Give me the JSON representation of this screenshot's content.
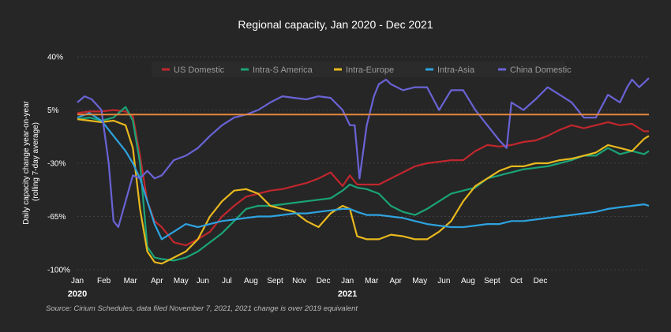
{
  "chart_data": {
    "type": "line",
    "title": "Regional capacity, Jan 2020 - Dec 2021",
    "ylabel": [
      "Daily capacity change year-on-year",
      "(rolling 7-day average)"
    ],
    "yticks": [
      "40%",
      "5%",
      "-30%",
      "-65%",
      "-100%"
    ],
    "ytick_values": [
      40,
      5,
      -30,
      -65,
      -100
    ],
    "ylim": [
      -100,
      40
    ],
    "xlim": [
      0,
      23.7
    ],
    "xticks": [
      "Jan",
      "Feb",
      "Mar",
      "Apr",
      "May",
      "Jun",
      "Jul",
      "Aug",
      "Sept",
      "Nov",
      "Dec",
      "Jan",
      "Mar",
      "Apr",
      "May",
      "Jun",
      "Aug",
      "Sept",
      "Oct",
      "Dec"
    ],
    "xtick_positions": [
      0,
      1.1,
      2.2,
      3.3,
      4.3,
      5.2,
      6.2,
      7.2,
      8.2,
      9.2,
      10.2,
      11.2,
      12.2,
      13.2,
      14.2,
      15.2,
      16.2,
      17.2,
      18.2,
      19.2
    ],
    "year_labels": [
      "2020",
      "2021"
    ],
    "year_positions": [
      0,
      11.2
    ],
    "reference_line": {
      "value": 2,
      "color": "#e8883a"
    },
    "grid": "horizontal dashed",
    "legend_position": "top",
    "series": [
      {
        "name": "US Domestic",
        "color": "#c0272d",
        "x": [
          0,
          0.5,
          1,
          1.5,
          2,
          2.3,
          2.6,
          2.9,
          3.2,
          3.5,
          4,
          4.5,
          5,
          5.5,
          6,
          6.5,
          7,
          7.5,
          8,
          8.5,
          9,
          9.5,
          10,
          10.5,
          11,
          11.3,
          11.6,
          12,
          12.5,
          13,
          13.5,
          14,
          14.5,
          15,
          15.5,
          16,
          16.5,
          17,
          17.5,
          18,
          18.5,
          19,
          19.5,
          20,
          20.5,
          21,
          21.5,
          22,
          22.5,
          23,
          23.5,
          23.7
        ],
        "values": [
          3,
          4,
          4,
          5,
          4,
          1,
          -25,
          -55,
          -68,
          -72,
          -82,
          -84,
          -80,
          -75,
          -65,
          -58,
          -52,
          -50,
          -48,
          -47,
          -45,
          -43,
          -40,
          -36,
          -45,
          -38,
          -44,
          -44,
          -44,
          -40,
          -36,
          -32,
          -30,
          -29,
          -28,
          -28,
          -22,
          -18,
          -19,
          -18,
          -16,
          -15,
          -12,
          -8,
          -5,
          -7,
          -5,
          -3,
          -5,
          -4,
          -9,
          -9
        ]
      },
      {
        "name": "Intra-S America",
        "color": "#1aa377",
        "x": [
          0,
          0.5,
          1,
          1.5,
          2,
          2.3,
          2.6,
          2.9,
          3.2,
          3.5,
          4,
          4.5,
          5,
          5.5,
          6,
          6.5,
          7,
          7.5,
          8,
          8.5,
          9,
          9.5,
          10,
          10.5,
          11,
          11.3,
          11.6,
          12,
          12.5,
          13,
          13.5,
          14,
          14.5,
          15,
          15.5,
          16,
          16.5,
          17,
          17.5,
          18,
          18.5,
          19,
          19.5,
          20,
          20.5,
          21,
          21.5,
          22,
          22.5,
          23,
          23.5,
          23.7
        ],
        "values": [
          -1,
          0,
          -2,
          0,
          7,
          -2,
          -30,
          -85,
          -92,
          -93,
          -94,
          -92,
          -88,
          -82,
          -76,
          -68,
          -60,
          -58,
          -58,
          -57,
          -56,
          -55,
          -54,
          -53,
          -48,
          -44,
          -46,
          -47,
          -50,
          -58,
          -62,
          -64,
          -60,
          -55,
          -50,
          -48,
          -46,
          -40,
          -38,
          -36,
          -34,
          -33,
          -32,
          -30,
          -28,
          -25,
          -25,
          -20,
          -24,
          -22,
          -24,
          -22
        ]
      },
      {
        "name": "Intra-Europe",
        "color": "#e8b81e",
        "x": [
          0,
          0.5,
          1,
          1.5,
          2,
          2.3,
          2.6,
          2.9,
          3.2,
          3.5,
          4,
          4.5,
          5,
          5.5,
          6,
          6.5,
          7,
          7.5,
          8,
          8.5,
          9,
          9.5,
          10,
          10.5,
          11,
          11.3,
          11.6,
          12,
          12.5,
          13,
          13.5,
          14,
          14.5,
          15,
          15.5,
          16,
          16.5,
          17,
          17.5,
          18,
          18.5,
          19,
          19.5,
          20,
          20.5,
          21,
          21.5,
          22,
          22.5,
          23,
          23.5,
          23.7
        ],
        "values": [
          -1,
          -2,
          -3,
          -2,
          -5,
          -20,
          -60,
          -88,
          -95,
          -96,
          -92,
          -88,
          -80,
          -65,
          -55,
          -48,
          -47,
          -50,
          -58,
          -60,
          -62,
          -68,
          -72,
          -63,
          -58,
          -60,
          -78,
          -80,
          -80,
          -77,
          -78,
          -80,
          -80,
          -75,
          -68,
          -55,
          -45,
          -40,
          -35,
          -32,
          -32,
          -30,
          -30,
          -28,
          -27,
          -25,
          -23,
          -18,
          -20,
          -22,
          -14,
          -12
        ]
      },
      {
        "name": "Intra-Asia",
        "color": "#2ea2df",
        "x": [
          0,
          0.5,
          1,
          1.5,
          2,
          2.3,
          2.6,
          2.9,
          3.2,
          3.5,
          4,
          4.5,
          5,
          5.5,
          6,
          6.5,
          7,
          7.5,
          8,
          8.5,
          9,
          9.5,
          10,
          10.5,
          11,
          11.3,
          11.6,
          12,
          12.5,
          13,
          13.5,
          14,
          14.5,
          15,
          15.5,
          16,
          16.5,
          17,
          17.5,
          18,
          18.5,
          19,
          19.5,
          20,
          20.5,
          21,
          21.5,
          22,
          22.5,
          23,
          23.5,
          23.7
        ],
        "values": [
          0,
          3,
          -2,
          -12,
          -22,
          -30,
          -40,
          -55,
          -70,
          -80,
          -75,
          -70,
          -72,
          -70,
          -68,
          -67,
          -66,
          -65,
          -65,
          -64,
          -63,
          -63,
          -62,
          -61,
          -60,
          -60,
          -62,
          -64,
          -64,
          -65,
          -66,
          -68,
          -70,
          -71,
          -72,
          -72,
          -71,
          -70,
          -70,
          -68,
          -68,
          -67,
          -66,
          -65,
          -64,
          -63,
          -62,
          -60,
          -59,
          -58,
          -57,
          -58
        ]
      },
      {
        "name": "China Domestic",
        "color": "#6a63d6",
        "x": [
          0,
          0.3,
          0.6,
          1,
          1.3,
          1.5,
          1.7,
          2,
          2.3,
          2.6,
          2.9,
          3.2,
          3.5,
          4,
          4.5,
          5,
          5.5,
          6,
          6.5,
          7,
          7.5,
          8,
          8.5,
          9,
          9.5,
          10,
          10.5,
          11,
          11.3,
          11.5,
          11.7,
          12,
          12.3,
          12.5,
          12.8,
          13,
          13.5,
          14,
          14.5,
          15,
          15.5,
          16,
          16.5,
          17,
          17.5,
          17.8,
          18,
          18.5,
          19,
          19.5,
          20,
          20.5,
          21,
          21.5,
          22,
          22.5,
          22.8,
          23,
          23.3,
          23.7
        ],
        "values": [
          10,
          14,
          12,
          5,
          -30,
          -68,
          -72,
          -55,
          -38,
          -40,
          -35,
          -40,
          -38,
          -28,
          -25,
          -20,
          -12,
          -5,
          0,
          2,
          5,
          10,
          14,
          13,
          12,
          14,
          13,
          5,
          -5,
          -5,
          -40,
          -5,
          14,
          22,
          25,
          22,
          18,
          20,
          20,
          5,
          18,
          18,
          5,
          -5,
          -15,
          -20,
          10,
          5,
          12,
          20,
          15,
          10,
          0,
          0,
          15,
          10,
          20,
          25,
          20,
          26
        ]
      }
    ],
    "source": "Source: Cirium Schedules, data filed November 7, 2021, 2021 change is over 2019 equivalent"
  }
}
